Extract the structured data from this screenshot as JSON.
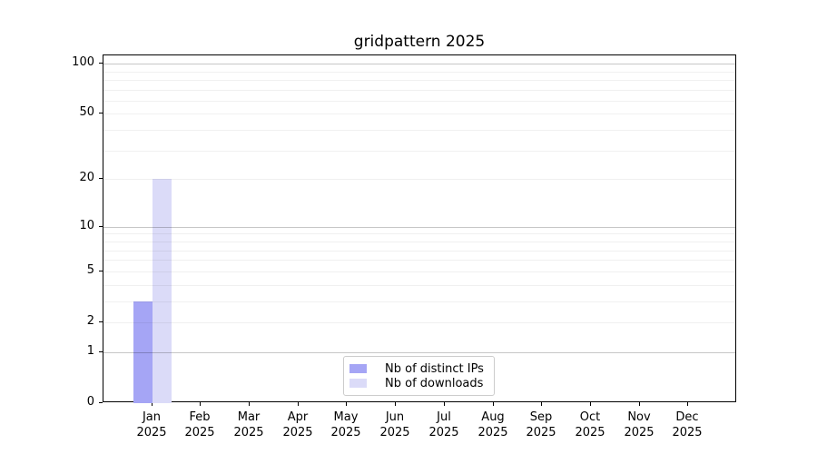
{
  "chart_data": {
    "type": "bar",
    "title": "gridpattern 2025",
    "categories": [
      "Jan",
      "Feb",
      "Mar",
      "Apr",
      "May",
      "Jun",
      "Jul",
      "Aug",
      "Sep",
      "Oct",
      "Nov",
      "Dec"
    ],
    "category_year": "2025",
    "series": [
      {
        "name": "Nb of distinct IPs",
        "color": "#a5a5f5",
        "values": [
          3,
          0,
          0,
          0,
          0,
          0,
          0,
          0,
          0,
          0,
          0,
          0
        ]
      },
      {
        "name": "Nb of downloads",
        "color": "#dbdbf8",
        "values": [
          20,
          0,
          0,
          0,
          0,
          0,
          0,
          0,
          0,
          0,
          0,
          0
        ]
      }
    ],
    "y_axis": {
      "scale": "log1p",
      "tick_labels": [
        0,
        1,
        2,
        5,
        10,
        20,
        50,
        100
      ],
      "major_gridlines": [
        1,
        10,
        100
      ],
      "minor_gridlines": [
        2,
        3,
        4,
        5,
        6,
        7,
        8,
        9,
        20,
        30,
        40,
        50,
        60,
        70,
        80,
        90
      ],
      "ylim": [
        0,
        112
      ]
    },
    "legend": {
      "position": "lower center",
      "entries": [
        "Nb of distinct IPs",
        "Nb of downloads"
      ]
    },
    "colors": {
      "axis": "#000000",
      "major_grid": "rgba(0,0,0,0.22)",
      "minor_grid": "rgba(0,0,0,0.06)",
      "background": "#ffffff"
    }
  }
}
